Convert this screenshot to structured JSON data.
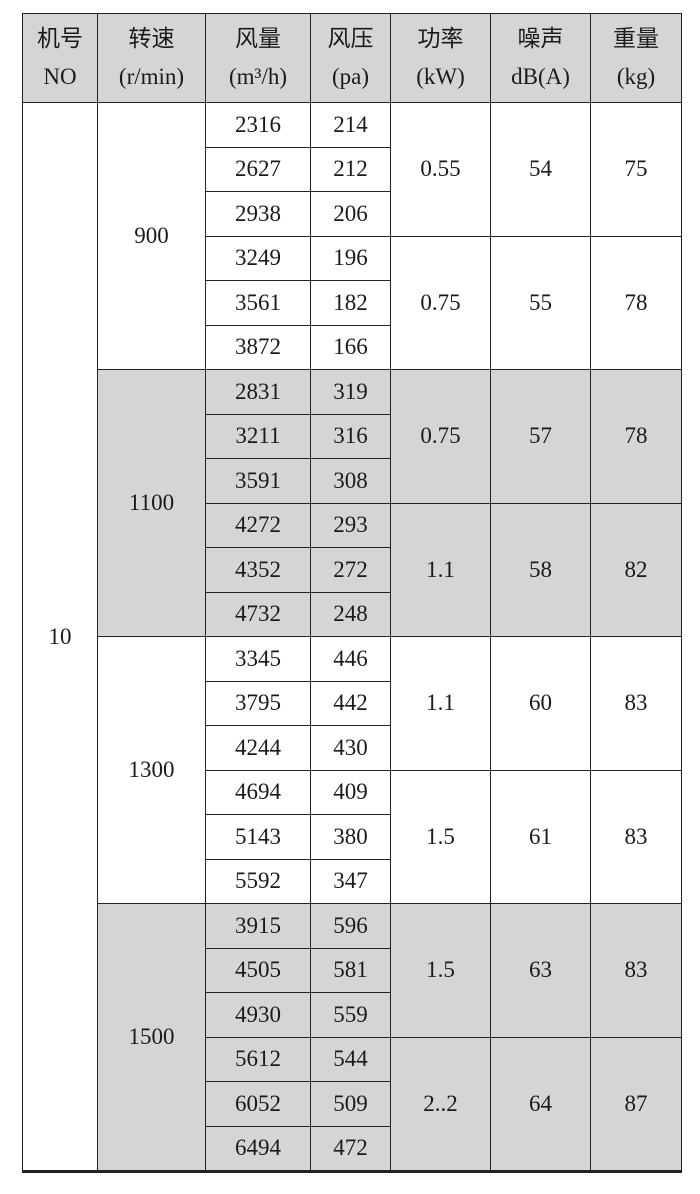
{
  "headers": [
    {
      "line1": "机号",
      "line2": "NO"
    },
    {
      "line1": "转速",
      "line2": "(r/min)"
    },
    {
      "line1": "风量",
      "line2": "(m³/h)"
    },
    {
      "line1": "风压",
      "line2": "(pa)"
    },
    {
      "line1": "功率",
      "line2": "(kW)"
    },
    {
      "line1": "噪声",
      "line2": "dB(A)"
    },
    {
      "line1": "重量",
      "line2": "(kg)"
    }
  ],
  "machine_no": "10",
  "shade_color": "#d4d5d7",
  "groups": [
    {
      "rpm": "900",
      "shaded": false,
      "subgroups": [
        {
          "power": "0.55",
          "noise": "54",
          "weight": "75",
          "rows": [
            [
              "2316",
              "214"
            ],
            [
              "2627",
              "212"
            ],
            [
              "2938",
              "206"
            ]
          ]
        },
        {
          "power": "0.75",
          "noise": "55",
          "weight": "78",
          "rows": [
            [
              "3249",
              "196"
            ],
            [
              "3561",
              "182"
            ],
            [
              "3872",
              "166"
            ]
          ]
        }
      ]
    },
    {
      "rpm": "1100",
      "shaded": true,
      "subgroups": [
        {
          "power": "0.75",
          "noise": "57",
          "weight": "78",
          "rows": [
            [
              "2831",
              "319"
            ],
            [
              "3211",
              "316"
            ],
            [
              "3591",
              "308"
            ]
          ]
        },
        {
          "power": "1.1",
          "noise": "58",
          "weight": "82",
          "rows": [
            [
              "4272",
              "293"
            ],
            [
              "4352",
              "272"
            ],
            [
              "4732",
              "248"
            ]
          ]
        }
      ]
    },
    {
      "rpm": "1300",
      "shaded": false,
      "subgroups": [
        {
          "power": "1.1",
          "noise": "60",
          "weight": "83",
          "rows": [
            [
              "3345",
              "446"
            ],
            [
              "3795",
              "442"
            ],
            [
              "4244",
              "430"
            ]
          ]
        },
        {
          "power": "1.5",
          "noise": "61",
          "weight": "83",
          "rows": [
            [
              "4694",
              "409"
            ],
            [
              "5143",
              "380"
            ],
            [
              "5592",
              "347"
            ]
          ]
        }
      ]
    },
    {
      "rpm": "1500",
      "shaded": true,
      "subgroups": [
        {
          "power": "1.5",
          "noise": "63",
          "weight": "83",
          "rows": [
            [
              "3915",
              "596"
            ],
            [
              "4505",
              "581"
            ],
            [
              "4930",
              "559"
            ]
          ]
        },
        {
          "power": "2..2",
          "noise": "64",
          "weight": "87",
          "rows": [
            [
              "5612",
              "544"
            ],
            [
              "6052",
              "509"
            ],
            [
              "6494",
              "472"
            ]
          ]
        }
      ]
    }
  ]
}
